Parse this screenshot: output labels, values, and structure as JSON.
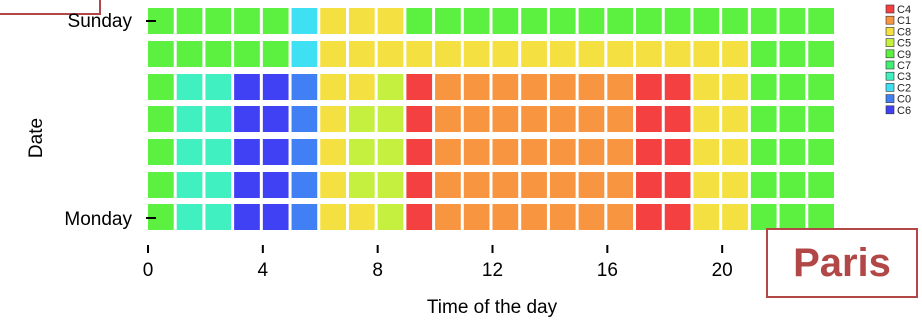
{
  "city_label": "Paris",
  "chart_data": {
    "type": "heatmap",
    "xlabel": "Time of the day",
    "ylabel": "Date",
    "xlim": [
      0,
      24
    ],
    "x_ticks": [
      0,
      4,
      8,
      12,
      16,
      20
    ],
    "y_tick_labels": {
      "top": "Sunday",
      "bottom": "Monday"
    },
    "legend": [
      {
        "label": "C4",
        "color": "#f44040"
      },
      {
        "label": "C1",
        "color": "#f79540"
      },
      {
        "label": "C8",
        "color": "#f4e040"
      },
      {
        "label": "C5",
        "color": "#c6f040"
      },
      {
        "label": "C9",
        "color": "#5cf040"
      },
      {
        "label": "C7",
        "color": "#40f070"
      },
      {
        "label": "C3",
        "color": "#40f0c0"
      },
      {
        "label": "C2",
        "color": "#40e0f4"
      },
      {
        "label": "C0",
        "color": "#4080f4"
      },
      {
        "label": "C6",
        "color": "#4040f4"
      }
    ],
    "rows_top_to_bottom": [
      {
        "date": "Sunday",
        "hours": [
          "C9",
          "C9",
          "C9",
          "C9",
          "C9",
          "C2",
          "C8",
          "C8",
          "C8",
          "C9",
          "C9",
          "C9",
          "C9",
          "C9",
          "C9",
          "C9",
          "C9",
          "C9",
          "C9",
          "C9",
          "C9",
          "C9",
          "C9",
          "C9"
        ]
      },
      {
        "date": "",
        "hours": [
          "C9",
          "C9",
          "C9",
          "C9",
          "C9",
          "C2",
          "C8",
          "C8",
          "C8",
          "C8",
          "C8",
          "C8",
          "C8",
          "C8",
          "C8",
          "C8",
          "C8",
          "C8",
          "C8",
          "C8",
          "C8",
          "C9",
          "C9",
          "C9"
        ]
      },
      {
        "date": "",
        "hours": [
          "C9",
          "C3",
          "C3",
          "C6",
          "C6",
          "C0",
          "C8",
          "C8",
          "C5",
          "C4",
          "C1",
          "C1",
          "C1",
          "C1",
          "C1",
          "C1",
          "C1",
          "C4",
          "C4",
          "C8",
          "C8",
          "C9",
          "C9",
          "C9"
        ]
      },
      {
        "date": "",
        "hours": [
          "C9",
          "C3",
          "C3",
          "C6",
          "C6",
          "C0",
          "C8",
          "C5",
          "C5",
          "C4",
          "C1",
          "C1",
          "C1",
          "C1",
          "C1",
          "C1",
          "C1",
          "C4",
          "C4",
          "C8",
          "C8",
          "C9",
          "C9",
          "C9"
        ]
      },
      {
        "date": "",
        "hours": [
          "C9",
          "C3",
          "C3",
          "C6",
          "C6",
          "C0",
          "C8",
          "C5",
          "C5",
          "C4",
          "C1",
          "C1",
          "C1",
          "C1",
          "C1",
          "C1",
          "C1",
          "C4",
          "C4",
          "C8",
          "C8",
          "C9",
          "C9",
          "C9"
        ]
      },
      {
        "date": "",
        "hours": [
          "C9",
          "C3",
          "C3",
          "C6",
          "C6",
          "C0",
          "C8",
          "C5",
          "C5",
          "C4",
          "C1",
          "C1",
          "C1",
          "C1",
          "C1",
          "C1",
          "C1",
          "C4",
          "C4",
          "C8",
          "C8",
          "C9",
          "C9",
          "C9"
        ]
      },
      {
        "date": "Monday",
        "hours": [
          "C9",
          "C3",
          "C3",
          "C6",
          "C6",
          "C0",
          "C8",
          "C8",
          "C5",
          "C4",
          "C1",
          "C1",
          "C1",
          "C1",
          "C1",
          "C1",
          "C1",
          "C4",
          "C4",
          "C8",
          "C8",
          "C9",
          "C9",
          "C9"
        ]
      }
    ]
  }
}
